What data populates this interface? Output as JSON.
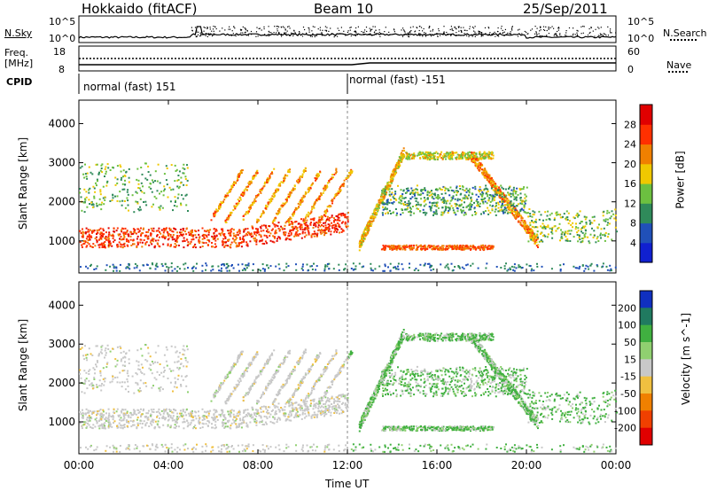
{
  "header": {
    "station": "Hokkaido (fitACF)",
    "beam": "Beam 10",
    "date": "25/Sep/2011"
  },
  "top_panels": {
    "nsky_label": "N.Sky",
    "nsearch_label": "N.Search",
    "nsky_ticks": [
      "10^5",
      "10^0"
    ],
    "nsearch_ticks": [
      "10^5",
      "10^0"
    ],
    "freq_label_1": "Freq.",
    "freq_label_2": "[MHz]",
    "freq_ticks": [
      "18",
      "8"
    ],
    "nave_label": "Nave",
    "nave_ticks": [
      "60",
      "0"
    ],
    "cpid_label": "CPID",
    "cpid_1": "normal (fast) 151",
    "cpid_2": "normal (fast) -151"
  },
  "chart_data": [
    {
      "type": "heatmap",
      "name": "power",
      "ylabel": "Slant Range [km]",
      "xlabel": "Time UT",
      "x_ticks": [
        "00:00",
        "04:00",
        "08:00",
        "12:00",
        "16:00",
        "20:00",
        "00:00"
      ],
      "y_ticks": [
        1000,
        2000,
        3000,
        4000
      ],
      "ylim": [
        180,
        4600
      ],
      "xlim_hours": [
        0,
        24
      ],
      "colorbar_label": "Power [dB]",
      "colorbar_ticks": [
        4,
        8,
        12,
        16,
        20,
        24,
        28
      ],
      "colorbar_colors": [
        "#1020d0",
        "#2050b8",
        "#2f8a5a",
        "#6cc040",
        "#f0c800",
        "#f08000",
        "#ff3000",
        "#e00000"
      ],
      "features": [
        {
          "desc": "band",
          "t": [
            0,
            12
          ],
          "range": [
            800,
            1500
          ],
          "level": 26
        },
        {
          "desc": "arc",
          "t": [
            13,
            19.5
          ],
          "range": [
            900,
            3400
          ],
          "level": 20
        },
        {
          "desc": "band",
          "t": [
            14,
            20
          ],
          "range": [
            1500,
            2200
          ],
          "level": 10
        }
      ]
    },
    {
      "type": "heatmap",
      "name": "velocity",
      "ylabel": "Slant Range [km]",
      "xlabel": "Time UT",
      "x_ticks": [
        "00:00",
        "04:00",
        "08:00",
        "12:00",
        "16:00",
        "20:00",
        "00:00"
      ],
      "y_ticks": [
        1000,
        2000,
        3000,
        4000
      ],
      "ylim": [
        180,
        4600
      ],
      "xlim_hours": [
        0,
        24
      ],
      "colorbar_label": "Velocity [m s^-1]",
      "colorbar_ticks": [
        200,
        100,
        50,
        15,
        -15,
        -50,
        -100,
        -200
      ],
      "colorbar_colors": [
        "#1030c0",
        "#207a60",
        "#40b040",
        "#90d070",
        "#c8c8c8",
        "#f0c040",
        "#f08000",
        "#f04000",
        "#e00000"
      ]
    }
  ]
}
